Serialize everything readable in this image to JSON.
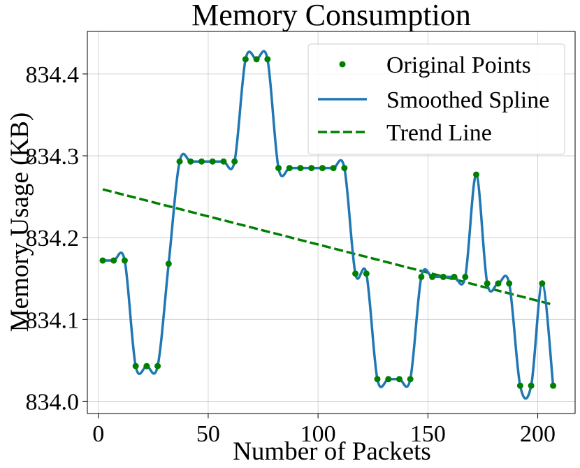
{
  "chart_data": {
    "type": "line",
    "title": "Memory Consumption",
    "xlabel": "Number of Packets",
    "ylabel": "Memory Usage (KB)",
    "xlim": [
      -5,
      217
    ],
    "ylim": [
      833.985,
      834.452
    ],
    "x_ticks": [
      {
        "value": 0,
        "label": "0"
      },
      {
        "value": 50,
        "label": "50"
      },
      {
        "value": 100,
        "label": "100"
      },
      {
        "value": 150,
        "label": "150"
      },
      {
        "value": 200,
        "label": "200"
      }
    ],
    "y_ticks": [
      {
        "value": 834.0,
        "label": "834.0"
      },
      {
        "value": 834.1,
        "label": "834.1"
      },
      {
        "value": 834.2,
        "label": "834.2"
      },
      {
        "value": 834.3,
        "label": "834.3"
      },
      {
        "value": 834.4,
        "label": "834.4"
      }
    ],
    "grid": true,
    "legend_position": "top-right",
    "series": [
      {
        "name": "Original Points",
        "kind": "scatter",
        "color": "#008000",
        "x": [
          2,
          7,
          12,
          17,
          22,
          27,
          32,
          37,
          42,
          47,
          52,
          57,
          62,
          67,
          72,
          77,
          82,
          87,
          92,
          97,
          102,
          107,
          112,
          117,
          122,
          127,
          132,
          137,
          142,
          147,
          152,
          157,
          162,
          167,
          172,
          177,
          182,
          187,
          192,
          197,
          202,
          207
        ],
        "y": [
          834.172,
          834.172,
          834.172,
          834.043,
          834.043,
          834.043,
          834.168,
          834.293,
          834.293,
          834.293,
          834.293,
          834.293,
          834.293,
          834.418,
          834.418,
          834.418,
          834.285,
          834.285,
          834.285,
          834.285,
          834.285,
          834.285,
          834.285,
          834.156,
          834.156,
          834.027,
          834.027,
          834.027,
          834.027,
          834.152,
          834.152,
          834.152,
          834.152,
          834.152,
          834.277,
          834.144,
          834.144,
          834.144,
          834.019,
          834.019,
          834.144,
          834.019
        ]
      },
      {
        "name": "Smoothed Spline",
        "kind": "line",
        "color": "#1f77b4",
        "x": [
          2,
          7,
          12,
          17,
          22,
          27,
          32,
          37,
          42,
          47,
          52,
          57,
          62,
          67,
          72,
          77,
          82,
          87,
          92,
          97,
          102,
          107,
          112,
          117,
          122,
          127,
          132,
          137,
          142,
          147,
          152,
          157,
          162,
          167,
          172,
          177,
          182,
          187,
          192,
          197,
          202,
          207
        ],
        "y": [
          834.172,
          834.172,
          834.172,
          834.043,
          834.043,
          834.043,
          834.168,
          834.293,
          834.293,
          834.293,
          834.293,
          834.293,
          834.293,
          834.418,
          834.418,
          834.418,
          834.285,
          834.285,
          834.285,
          834.285,
          834.285,
          834.285,
          834.285,
          834.156,
          834.156,
          834.027,
          834.027,
          834.027,
          834.027,
          834.152,
          834.152,
          834.152,
          834.152,
          834.152,
          834.277,
          834.144,
          834.144,
          834.144,
          834.019,
          834.019,
          834.144,
          834.019
        ]
      },
      {
        "name": "Trend Line",
        "kind": "dashed-line",
        "color": "#008000",
        "x": [
          2,
          207
        ],
        "y": [
          834.259,
          834.118
        ]
      }
    ]
  }
}
